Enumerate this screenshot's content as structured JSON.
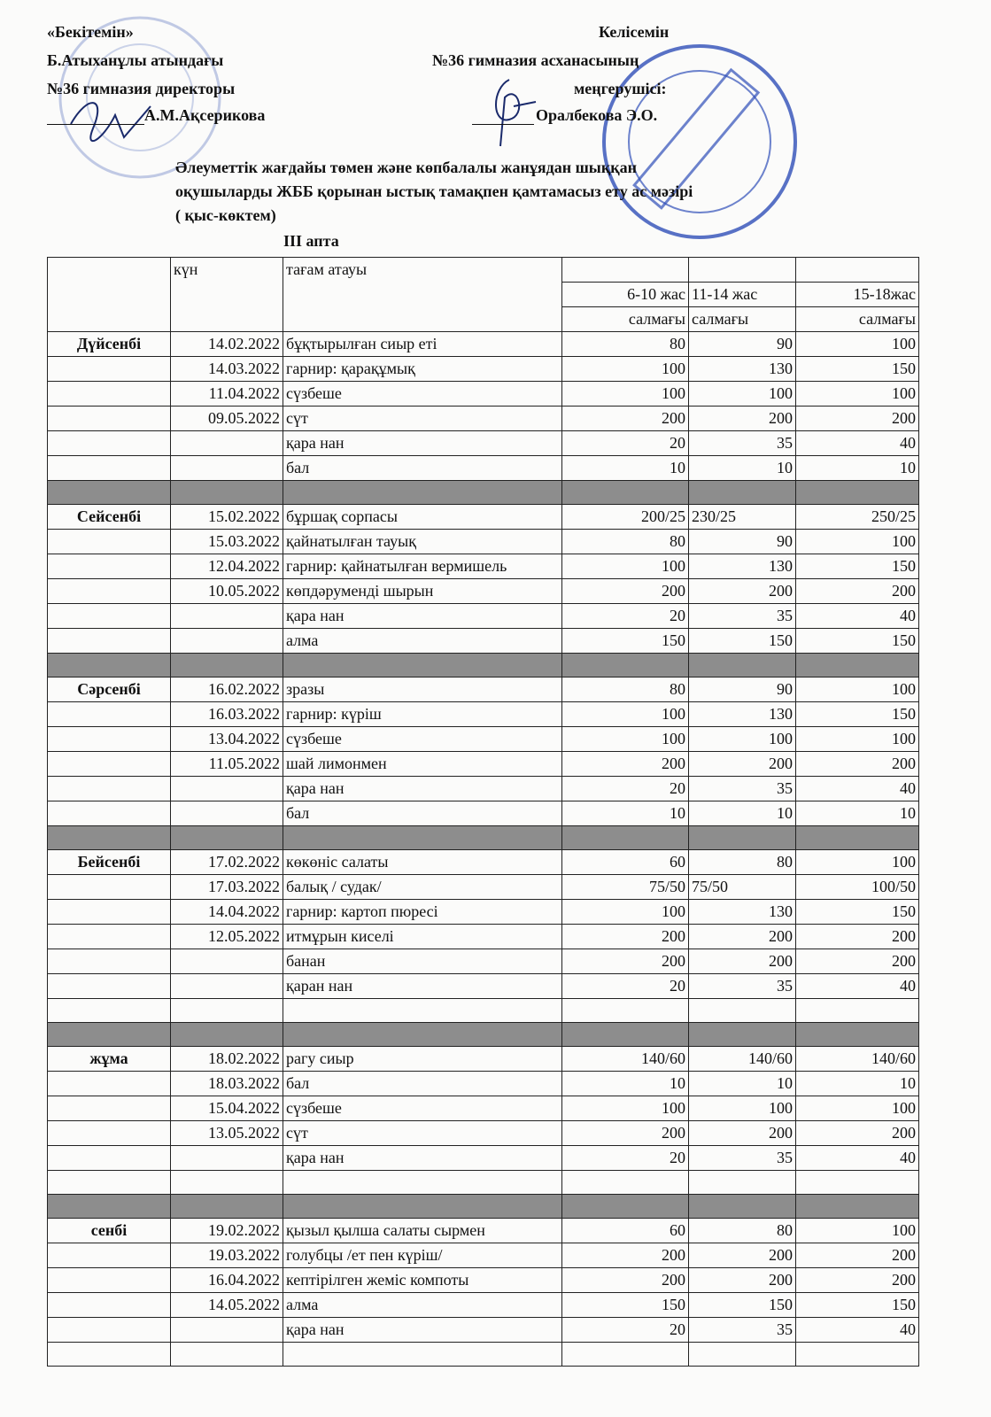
{
  "approval": {
    "line1": "«Бекітемін»",
    "line2": "Б.Атыханұлы атындағы",
    "line3": "№36 гимназия директоры",
    "signer": "А.М.Ақсерикова"
  },
  "agreement": {
    "line1": "Келісемін",
    "line2": "№36 гимназия асханасының",
    "line3": "меңгерушісі:",
    "signer": "Оралбекова Э.О."
  },
  "title": {
    "line1": "Әлеуметтік жағдайы төмен және көпбалалы жанұядан шыққан",
    "line2": "оқушыларды ЖББ қорынан ыстық тамақпен қамтамасыз ету ас мәзірі",
    "line3": "( қыс-көктем)",
    "week": "III апта"
  },
  "table": {
    "headers": {
      "day": "күн",
      "dish": "тағам атауы",
      "ages": [
        "6-10 жас",
        "11-14 жас",
        "15-18жас"
      ],
      "weight": [
        "салмағы",
        "салмағы",
        "салмағы"
      ]
    },
    "rows": [
      {
        "type": "item",
        "day": "Дүйсенбі",
        "date": "14.02.2022",
        "dish": "бұқтырылған сиыр еті",
        "v": [
          "80",
          "90",
          "100"
        ]
      },
      {
        "type": "item",
        "day": "",
        "date": "14.03.2022",
        "dish": "гарнир: қарақұмық",
        "v": [
          "100",
          "130",
          "150"
        ]
      },
      {
        "type": "item",
        "day": "",
        "date": "11.04.2022",
        "dish": "сүзбеше",
        "v": [
          "100",
          "100",
          "100"
        ]
      },
      {
        "type": "item",
        "day": "",
        "date": "09.05.2022",
        "dish": "сүт",
        "v": [
          "200",
          "200",
          "200"
        ]
      },
      {
        "type": "item",
        "day": "",
        "date": "",
        "dish": "қара нан",
        "v": [
          "20",
          "35",
          "40"
        ]
      },
      {
        "type": "item",
        "day": "",
        "date": "",
        "dish": "бал",
        "v": [
          "10",
          "10",
          "10"
        ]
      },
      {
        "type": "gray"
      },
      {
        "type": "item",
        "day": "Сейсенбі",
        "date": "15.02.2022",
        "dish": "бұршақ сорпасы",
        "v": [
          "200/25",
          "230/25",
          "250/25"
        ]
      },
      {
        "type": "item",
        "day": "",
        "date": "15.03.2022",
        "dish": "қайнатылған тауық",
        "v": [
          "80",
          "90",
          "100"
        ]
      },
      {
        "type": "item",
        "day": "",
        "date": "12.04.2022",
        "dish": "гарнир: қайнатылған вермишель",
        "v": [
          "100",
          "130",
          "150"
        ]
      },
      {
        "type": "item",
        "day": "",
        "date": "10.05.2022",
        "dish": "көпдәруменді шырын",
        "v": [
          "200",
          "200",
          "200"
        ]
      },
      {
        "type": "item",
        "day": "",
        "date": "",
        "dish": "қара нан",
        "v": [
          "20",
          "35",
          "40"
        ]
      },
      {
        "type": "item",
        "day": "",
        "date": "",
        "dish": "алма",
        "v": [
          "150",
          "150",
          "150"
        ]
      },
      {
        "type": "gray"
      },
      {
        "type": "item",
        "day": "Сәрсенбі",
        "date": "16.02.2022",
        "dish": "зразы",
        "v": [
          "80",
          "90",
          "100"
        ]
      },
      {
        "type": "item",
        "day": "",
        "date": "16.03.2022",
        "dish": "гарнир: күріш",
        "v": [
          "100",
          "130",
          "150"
        ]
      },
      {
        "type": "item",
        "day": "",
        "date": "13.04.2022",
        "dish": "сүзбеше",
        "v": [
          "100",
          "100",
          "100"
        ]
      },
      {
        "type": "item",
        "day": "",
        "date": "11.05.2022",
        "dish": "шай лимонмен",
        "v": [
          "200",
          "200",
          "200"
        ]
      },
      {
        "type": "item",
        "day": "",
        "date": "",
        "dish": "қара нан",
        "v": [
          "20",
          "35",
          "40"
        ]
      },
      {
        "type": "item",
        "day": "",
        "date": "",
        "dish": "бал",
        "v": [
          "10",
          "10",
          "10"
        ]
      },
      {
        "type": "gray"
      },
      {
        "type": "item",
        "day": "Бейсенбі",
        "date": "17.02.2022",
        "dish": "көкөніс салаты",
        "v": [
          "60",
          "80",
          "100"
        ]
      },
      {
        "type": "item",
        "day": "",
        "date": "17.03.2022",
        "dish": "балық / судак/",
        "v": [
          "75/50",
          "75/50",
          "100/50"
        ]
      },
      {
        "type": "item",
        "day": "",
        "date": "14.04.2022",
        "dish": "гарнир: картоп пюресі",
        "v": [
          "100",
          "130",
          "150"
        ]
      },
      {
        "type": "item",
        "day": "",
        "date": "12.05.2022",
        "dish": "итмұрын киселі",
        "v": [
          "200",
          "200",
          "200"
        ]
      },
      {
        "type": "item",
        "day": "",
        "date": "",
        "dish": "банан",
        "v": [
          "200",
          "200",
          "200"
        ]
      },
      {
        "type": "item",
        "day": "",
        "date": "",
        "dish": "қаран нан",
        "v": [
          "20",
          "35",
          "40"
        ]
      },
      {
        "type": "blank"
      },
      {
        "type": "gray"
      },
      {
        "type": "item",
        "day": "жұма",
        "date": "18.02.2022",
        "dish": "рагу сиыр",
        "v": [
          "140/60",
          "140/60",
          "140/60"
        ]
      },
      {
        "type": "item",
        "day": "",
        "date": "18.03.2022",
        "dish": "бал",
        "v": [
          "10",
          "10",
          "10"
        ]
      },
      {
        "type": "item",
        "day": "",
        "date": "15.04.2022",
        "dish": "сүзбеше",
        "v": [
          "100",
          "100",
          "100"
        ]
      },
      {
        "type": "item",
        "day": "",
        "date": "13.05.2022",
        "dish": "сүт",
        "v": [
          "200",
          "200",
          "200"
        ]
      },
      {
        "type": "item",
        "day": "",
        "date": "",
        "dish": "қара нан",
        "v": [
          "20",
          "35",
          "40"
        ]
      },
      {
        "type": "blank"
      },
      {
        "type": "gray"
      },
      {
        "type": "item",
        "day": "сенбі",
        "date": "19.02.2022",
        "dish": "қызыл қылша салаты сырмен",
        "v": [
          "60",
          "80",
          "100"
        ]
      },
      {
        "type": "item",
        "day": "",
        "date": "19.03.2022",
        "dish": "голубцы /ет пен күріш/",
        "v": [
          "200",
          "200",
          "200"
        ]
      },
      {
        "type": "item",
        "day": "",
        "date": "16.04.2022",
        "dish": "кептірілген жеміс компоты",
        "v": [
          "200",
          "200",
          "200"
        ]
      },
      {
        "type": "item",
        "day": "",
        "date": "14.05.2022",
        "dish": "алма",
        "v": [
          "150",
          "150",
          "150"
        ]
      },
      {
        "type": "item",
        "day": "",
        "date": "",
        "dish": "қара нан",
        "v": [
          "20",
          "35",
          "40"
        ]
      },
      {
        "type": "blank"
      }
    ]
  },
  "colors": {
    "stamp": "#2f4fb8",
    "ink": "#1a2a6b",
    "gray_row": "#8d8d8d"
  }
}
